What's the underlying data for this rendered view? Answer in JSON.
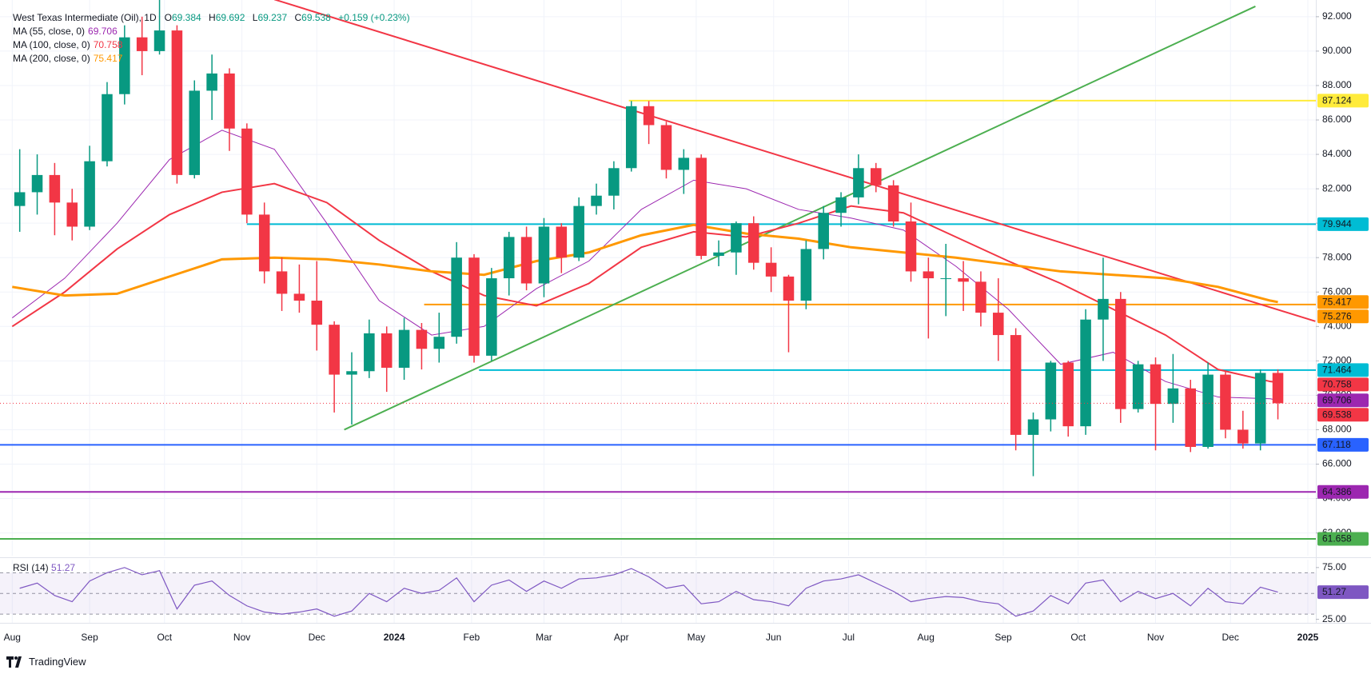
{
  "chart_data": {
    "type": "candlestick",
    "title": "West Texas Intermediate (Oil), 1D",
    "ohlc": [
      {
        "label": "O",
        "value": 69.384
      },
      {
        "label": "H",
        "value": 69.692
      },
      {
        "label": "L",
        "value": 69.237
      },
      {
        "label": "C",
        "value": 69.538
      }
    ],
    "change": "+0.159 (+0.23%)",
    "up_color": "#089981",
    "down_color": "#f23645",
    "grid": true,
    "xlim": [
      -4.9,
      522.2
    ],
    "xticks": [
      {
        "value": 0,
        "label": "Aug"
      },
      {
        "value": 31,
        "label": "Sep"
      },
      {
        "value": 61,
        "label": "Oct"
      },
      {
        "value": 92,
        "label": "Nov"
      },
      {
        "value": 122,
        "label": "Dec"
      },
      {
        "value": 153,
        "label": "2024"
      },
      {
        "value": 184,
        "label": "Feb"
      },
      {
        "value": 213,
        "label": "Mar"
      },
      {
        "value": 244,
        "label": "Apr"
      },
      {
        "value": 274,
        "label": "May"
      },
      {
        "value": 305,
        "label": "Jun"
      },
      {
        "value": 335,
        "label": "Jul"
      },
      {
        "value": 366,
        "label": "Aug"
      },
      {
        "value": 397,
        "label": "Sep"
      },
      {
        "value": 427,
        "label": "Oct"
      },
      {
        "value": 458,
        "label": "Nov"
      },
      {
        "value": 488,
        "label": "Dec"
      },
      {
        "value": 519,
        "label": "2025"
      }
    ],
    "ylim": [
      60.68,
      92.97
    ],
    "yticks": [
      {
        "value": 92,
        "label": "92.000"
      },
      {
        "value": 90,
        "label": "90.000"
      },
      {
        "value": 88,
        "label": "88.000"
      },
      {
        "value": 86,
        "label": "86.000"
      },
      {
        "value": 84,
        "label": "84.000"
      },
      {
        "value": 82,
        "label": "82.000"
      },
      {
        "value": 80,
        "label": "80.000"
      },
      {
        "value": 78,
        "label": "78.000"
      },
      {
        "value": 76,
        "label": "76.000"
      },
      {
        "value": 74,
        "label": "74.000"
      },
      {
        "value": 72,
        "label": "72.000"
      },
      {
        "value": 70,
        "label": "70.000"
      },
      {
        "value": 68,
        "label": "68.000"
      },
      {
        "value": 66,
        "label": "66.000"
      },
      {
        "value": 64,
        "label": "64.000"
      },
      {
        "value": 62,
        "label": "62.000"
      }
    ],
    "x": [
      3,
      10,
      17,
      24,
      31,
      38,
      45,
      52,
      59,
      66,
      73,
      80,
      87,
      94,
      101,
      108,
      115,
      122,
      129,
      136,
      143,
      150,
      157,
      164,
      171,
      178,
      185,
      192,
      199,
      206,
      213,
      220,
      227,
      234,
      241,
      248,
      255,
      262,
      269,
      276,
      283,
      290,
      297,
      304,
      311,
      318,
      325,
      332,
      339,
      346,
      353,
      360,
      367,
      374,
      381,
      388,
      395,
      402,
      409,
      416,
      423,
      430,
      437,
      444,
      451,
      458,
      465,
      472,
      479,
      486,
      493,
      500,
      507
    ],
    "open": [
      81.0,
      81.8,
      82.8,
      81.2,
      79.8,
      83.6,
      87.5,
      90.8,
      90.0,
      91.2,
      82.8,
      87.7,
      88.7,
      85.5,
      80.5,
      77.2,
      75.9,
      75.5,
      74.1,
      71.2,
      71.4,
      73.6,
      71.6,
      73.8,
      72.7,
      73.4,
      78.0,
      72.3,
      76.8,
      79.2,
      76.5,
      79.8,
      78.0,
      81.0,
      81.6,
      83.2,
      86.8,
      85.7,
      83.1,
      83.8,
      78.1,
      78.3,
      80.0,
      77.7,
      76.9,
      75.5,
      78.5,
      80.6,
      81.5,
      83.2,
      82.2,
      80.1,
      77.2,
      76.8,
      76.8,
      76.6,
      74.8,
      73.5,
      67.7,
      68.6,
      71.9,
      68.2,
      74.4,
      75.6,
      69.2,
      71.8,
      69.5,
      70.4,
      67.0,
      71.2,
      68.0,
      67.2,
      71.3
    ],
    "high": [
      84.3,
      84.0,
      83.5,
      82.0,
      84.5,
      88.2,
      91.5,
      92.0,
      93.7,
      91.5,
      88.3,
      89.8,
      89.0,
      85.8,
      81.2,
      78.0,
      77.6,
      77.8,
      74.3,
      72.5,
      74.4,
      74.0,
      74.5,
      74.2,
      74.8,
      78.9,
      78.2,
      77.4,
      79.5,
      79.8,
      80.3,
      80.0,
      81.5,
      82.3,
      83.6,
      87.1,
      87.1,
      85.9,
      84.3,
      84.0,
      79.0,
      80.1,
      80.4,
      78.6,
      77.0,
      79.0,
      81.0,
      81.8,
      84.0,
      83.5,
      82.5,
      81.2,
      78.0,
      78.8,
      77.8,
      77.2,
      76.8,
      73.9,
      69.0,
      72.0,
      72.0,
      75.0,
      78.0,
      76.0,
      72.0,
      72.2,
      72.4,
      70.9,
      71.9,
      71.4,
      69.1,
      71.5,
      71.5
    ],
    "low": [
      79.5,
      80.5,
      79.3,
      79.0,
      79.6,
      83.3,
      86.9,
      88.6,
      89.8,
      82.3,
      82.6,
      86.0,
      84.2,
      80.0,
      76.5,
      74.9,
      74.8,
      72.6,
      69.0,
      68.3,
      71.0,
      70.2,
      70.9,
      71.5,
      71.9,
      73.0,
      71.9,
      72.0,
      75.8,
      76.1,
      75.7,
      77.1,
      77.8,
      80.5,
      80.8,
      83.0,
      84.6,
      82.6,
      81.7,
      77.9,
      77.5,
      77.0,
      77.3,
      76.0,
      72.5,
      75.0,
      77.9,
      79.8,
      81.1,
      81.8,
      79.8,
      76.6,
      73.3,
      74.6,
      74.9,
      74.0,
      72.0,
      66.8,
      65.3,
      67.9,
      67.6,
      67.7,
      72.0,
      68.4,
      69.0,
      66.8,
      68.4,
      66.7,
      66.9,
      67.5,
      66.9,
      66.8,
      68.6
    ],
    "close": [
      81.8,
      82.8,
      81.2,
      79.8,
      83.6,
      87.5,
      90.8,
      90.0,
      91.2,
      82.8,
      87.7,
      88.7,
      85.5,
      80.5,
      77.2,
      75.9,
      75.5,
      74.1,
      71.2,
      71.4,
      73.6,
      71.6,
      73.8,
      72.7,
      73.4,
      78.0,
      72.3,
      76.8,
      79.2,
      76.5,
      79.8,
      78.0,
      81.0,
      81.6,
      83.2,
      86.8,
      85.7,
      83.1,
      83.8,
      78.1,
      78.3,
      80.0,
      77.7,
      76.9,
      75.5,
      78.5,
      80.6,
      81.5,
      83.2,
      82.2,
      80.1,
      77.2,
      76.8,
      76.8,
      76.6,
      74.8,
      73.5,
      67.7,
      68.6,
      71.9,
      68.2,
      74.4,
      75.6,
      69.2,
      71.8,
      69.5,
      70.4,
      67.0,
      71.2,
      68.0,
      67.2,
      71.3,
      69.538
    ],
    "moving_averages": [
      {
        "name": "MA (55, close, 0)",
        "color": "#9c27b0",
        "width": 1,
        "x": [
          0,
          21,
          42,
          63,
          84,
          105,
          126,
          147,
          168,
          189,
          210,
          231,
          252,
          273,
          294,
          315,
          336,
          357,
          378,
          399,
          420,
          441,
          462,
          483,
          504,
          507
        ],
        "values": [
          74.5,
          76.8,
          80.0,
          83.7,
          85.4,
          84.3,
          80.0,
          75.5,
          73.5,
          74.0,
          76.2,
          77.8,
          80.8,
          82.5,
          82.0,
          80.8,
          80.3,
          79.6,
          77.5,
          75.0,
          71.8,
          72.5,
          70.8,
          69.9,
          69.8,
          69.706
        ]
      },
      {
        "name": "MA (100, close, 0)",
        "color": "#f23645",
        "width": 2,
        "x": [
          0,
          21,
          42,
          63,
          84,
          105,
          126,
          147,
          168,
          189,
          210,
          231,
          252,
          273,
          294,
          315,
          336,
          357,
          378,
          399,
          420,
          441,
          462,
          483,
          504,
          507
        ],
        "values": [
          74.0,
          76.0,
          78.5,
          80.5,
          81.8,
          82.3,
          81.2,
          79.0,
          77.2,
          75.8,
          75.2,
          76.5,
          78.6,
          79.5,
          79.2,
          80.0,
          81.0,
          80.6,
          79.2,
          77.8,
          76.5,
          75.0,
          73.5,
          71.5,
          70.8,
          70.758
        ]
      },
      {
        "name": "MA (200, close, 0)",
        "color": "#ff9800",
        "width": 3,
        "x": [
          0,
          21,
          42,
          63,
          84,
          105,
          126,
          147,
          168,
          189,
          210,
          231,
          252,
          273,
          294,
          315,
          336,
          357,
          378,
          399,
          420,
          441,
          462,
          483,
          504,
          507
        ],
        "values": [
          76.3,
          75.8,
          75.9,
          76.9,
          77.9,
          78.0,
          77.9,
          77.6,
          77.2,
          77.0,
          77.8,
          78.3,
          79.3,
          79.9,
          79.4,
          79.1,
          78.6,
          78.3,
          78.0,
          77.6,
          77.2,
          77.0,
          76.8,
          76.3,
          75.5,
          75.417
        ]
      }
    ],
    "trendlines": [
      {
        "color": "#f23645",
        "x": [
          105,
          522
        ],
        "y": [
          93.0,
          74.3
        ]
      },
      {
        "color": "#4caf50",
        "x": [
          133,
          498
        ],
        "y": [
          68.0,
          92.6
        ]
      }
    ],
    "levels": [
      {
        "value": 87.124,
        "color": "#ffeb3b",
        "from": 247
      },
      {
        "value": 79.944,
        "color": "#00bcd4",
        "from": 94
      },
      {
        "value": 75.276,
        "color": "#ff9800",
        "from": 165
      },
      {
        "value": 71.464,
        "color": "#00bcd4",
        "from": 187
      },
      {
        "value": 67.118,
        "color": "#2962ff"
      },
      {
        "value": 64.386,
        "color": "#9c27b0"
      },
      {
        "value": 61.658,
        "color": "#4caf50"
      }
    ],
    "rsi": {
      "name": "RSI (14)",
      "color": "#7e57c2",
      "ylim": [
        21.6,
        82.6
      ],
      "yticks": [
        {
          "value": 75,
          "label": "75.00"
        },
        {
          "value": 25,
          "label": "25.00"
        }
      ],
      "bands": [
        70,
        50,
        30
      ],
      "values": [
        55,
        60,
        48,
        42,
        62,
        70,
        75,
        68,
        72,
        35,
        58,
        62,
        48,
        38,
        32,
        30,
        32,
        35,
        28,
        33,
        50,
        42,
        55,
        50,
        53,
        65,
        42,
        58,
        63,
        52,
        62,
        55,
        64,
        65,
        68,
        74,
        66,
        55,
        58,
        40,
        42,
        52,
        44,
        42,
        38,
        55,
        62,
        64,
        68,
        60,
        52,
        42,
        45,
        47,
        46,
        42,
        40,
        28,
        33,
        48,
        40,
        60,
        63,
        42,
        52,
        45,
        50,
        38,
        55,
        42,
        40,
        56,
        51.27
      ]
    },
    "brand": "TradingView"
  }
}
